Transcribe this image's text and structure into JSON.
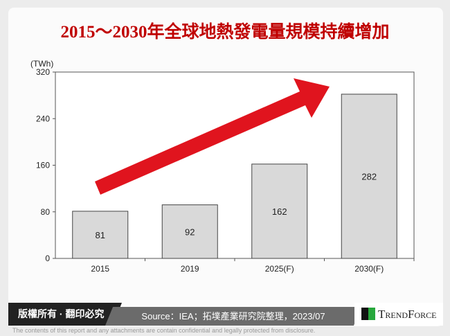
{
  "title": "2015～2030年全球地熱發電量規模持續增加",
  "footer": {
    "copyright": "版權所有 · 翻印必究",
    "source": "Source：IEA；拓墣產業研究院整理，2023/07",
    "brand": "TrendForce",
    "disclaimer": "The contents of this report and any attachments are contain confidential and legally protected from disclosure."
  },
  "colors": {
    "title": "#c00000",
    "bar": "#d9d9d9",
    "arrow": "#e0141e"
  },
  "chart_data": {
    "type": "bar",
    "title": "2015～2030年全球地熱發電量規模持續增加",
    "ylabel": "(TWh)",
    "xlabel": "",
    "categories": [
      "2015",
      "2019",
      "2025(F)",
      "2030(F)"
    ],
    "values": [
      81,
      92,
      162,
      282
    ],
    "ylim": [
      0,
      320
    ],
    "yticks": [
      0,
      80,
      160,
      240,
      320
    ],
    "grid": false,
    "annotations": [
      "upward red arrow"
    ]
  }
}
